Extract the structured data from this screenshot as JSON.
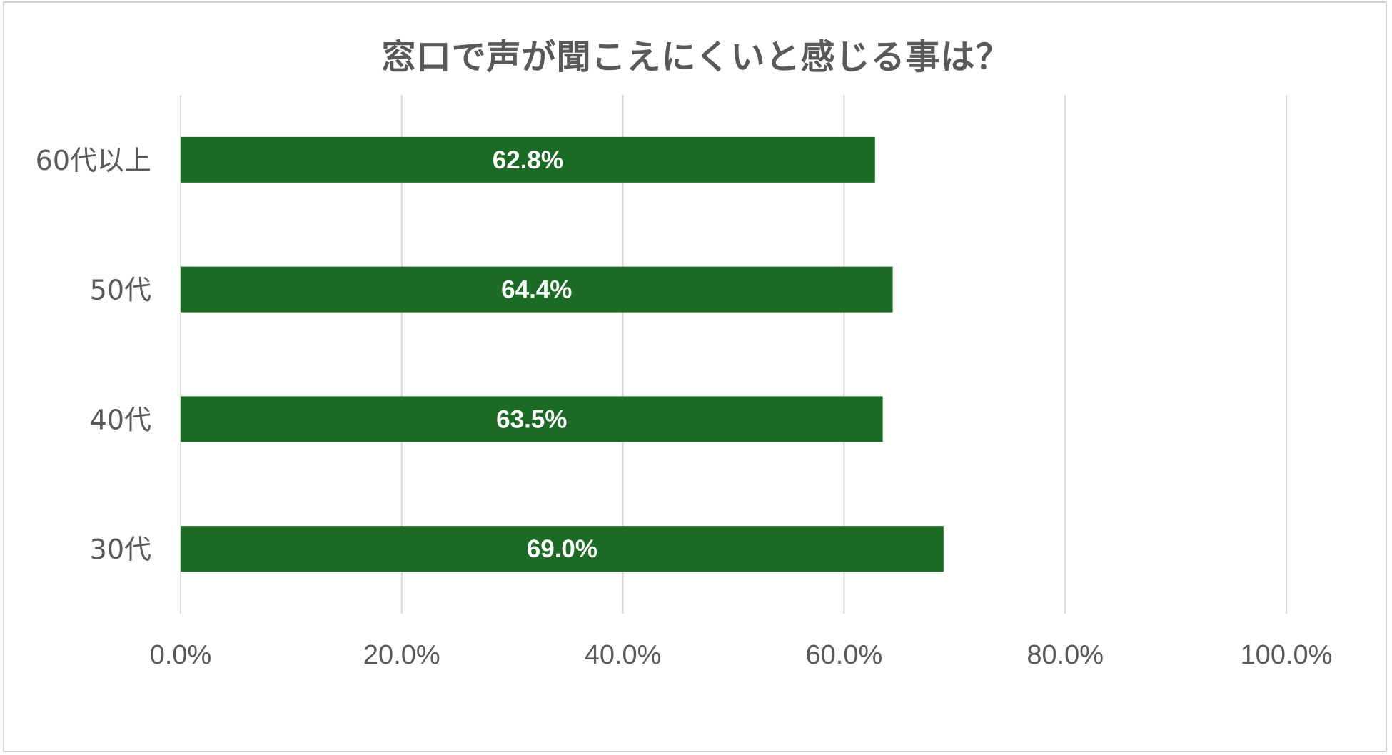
{
  "chart_data": {
    "type": "bar",
    "orientation": "horizontal",
    "title": "窓口で声が聞こえにくいと感じる事は？",
    "categories": [
      "60代以上",
      "50代",
      "40代",
      "30代"
    ],
    "values": [
      62.8,
      64.4,
      63.5,
      69.0
    ],
    "data_labels": [
      "62.8%",
      "64.4%",
      "63.5%",
      "69.0%"
    ],
    "xlim": [
      0,
      100
    ],
    "x_ticks": [
      0,
      20,
      40,
      60,
      80,
      100
    ],
    "x_tick_labels": [
      "0.0%",
      "20.0%",
      "40.0%",
      "60.0%",
      "80.0%",
      "100.0%"
    ],
    "grid": "vertical",
    "legend": "none",
    "bar_color": "#1b6b24",
    "grid_color": "#d9d9d9"
  }
}
